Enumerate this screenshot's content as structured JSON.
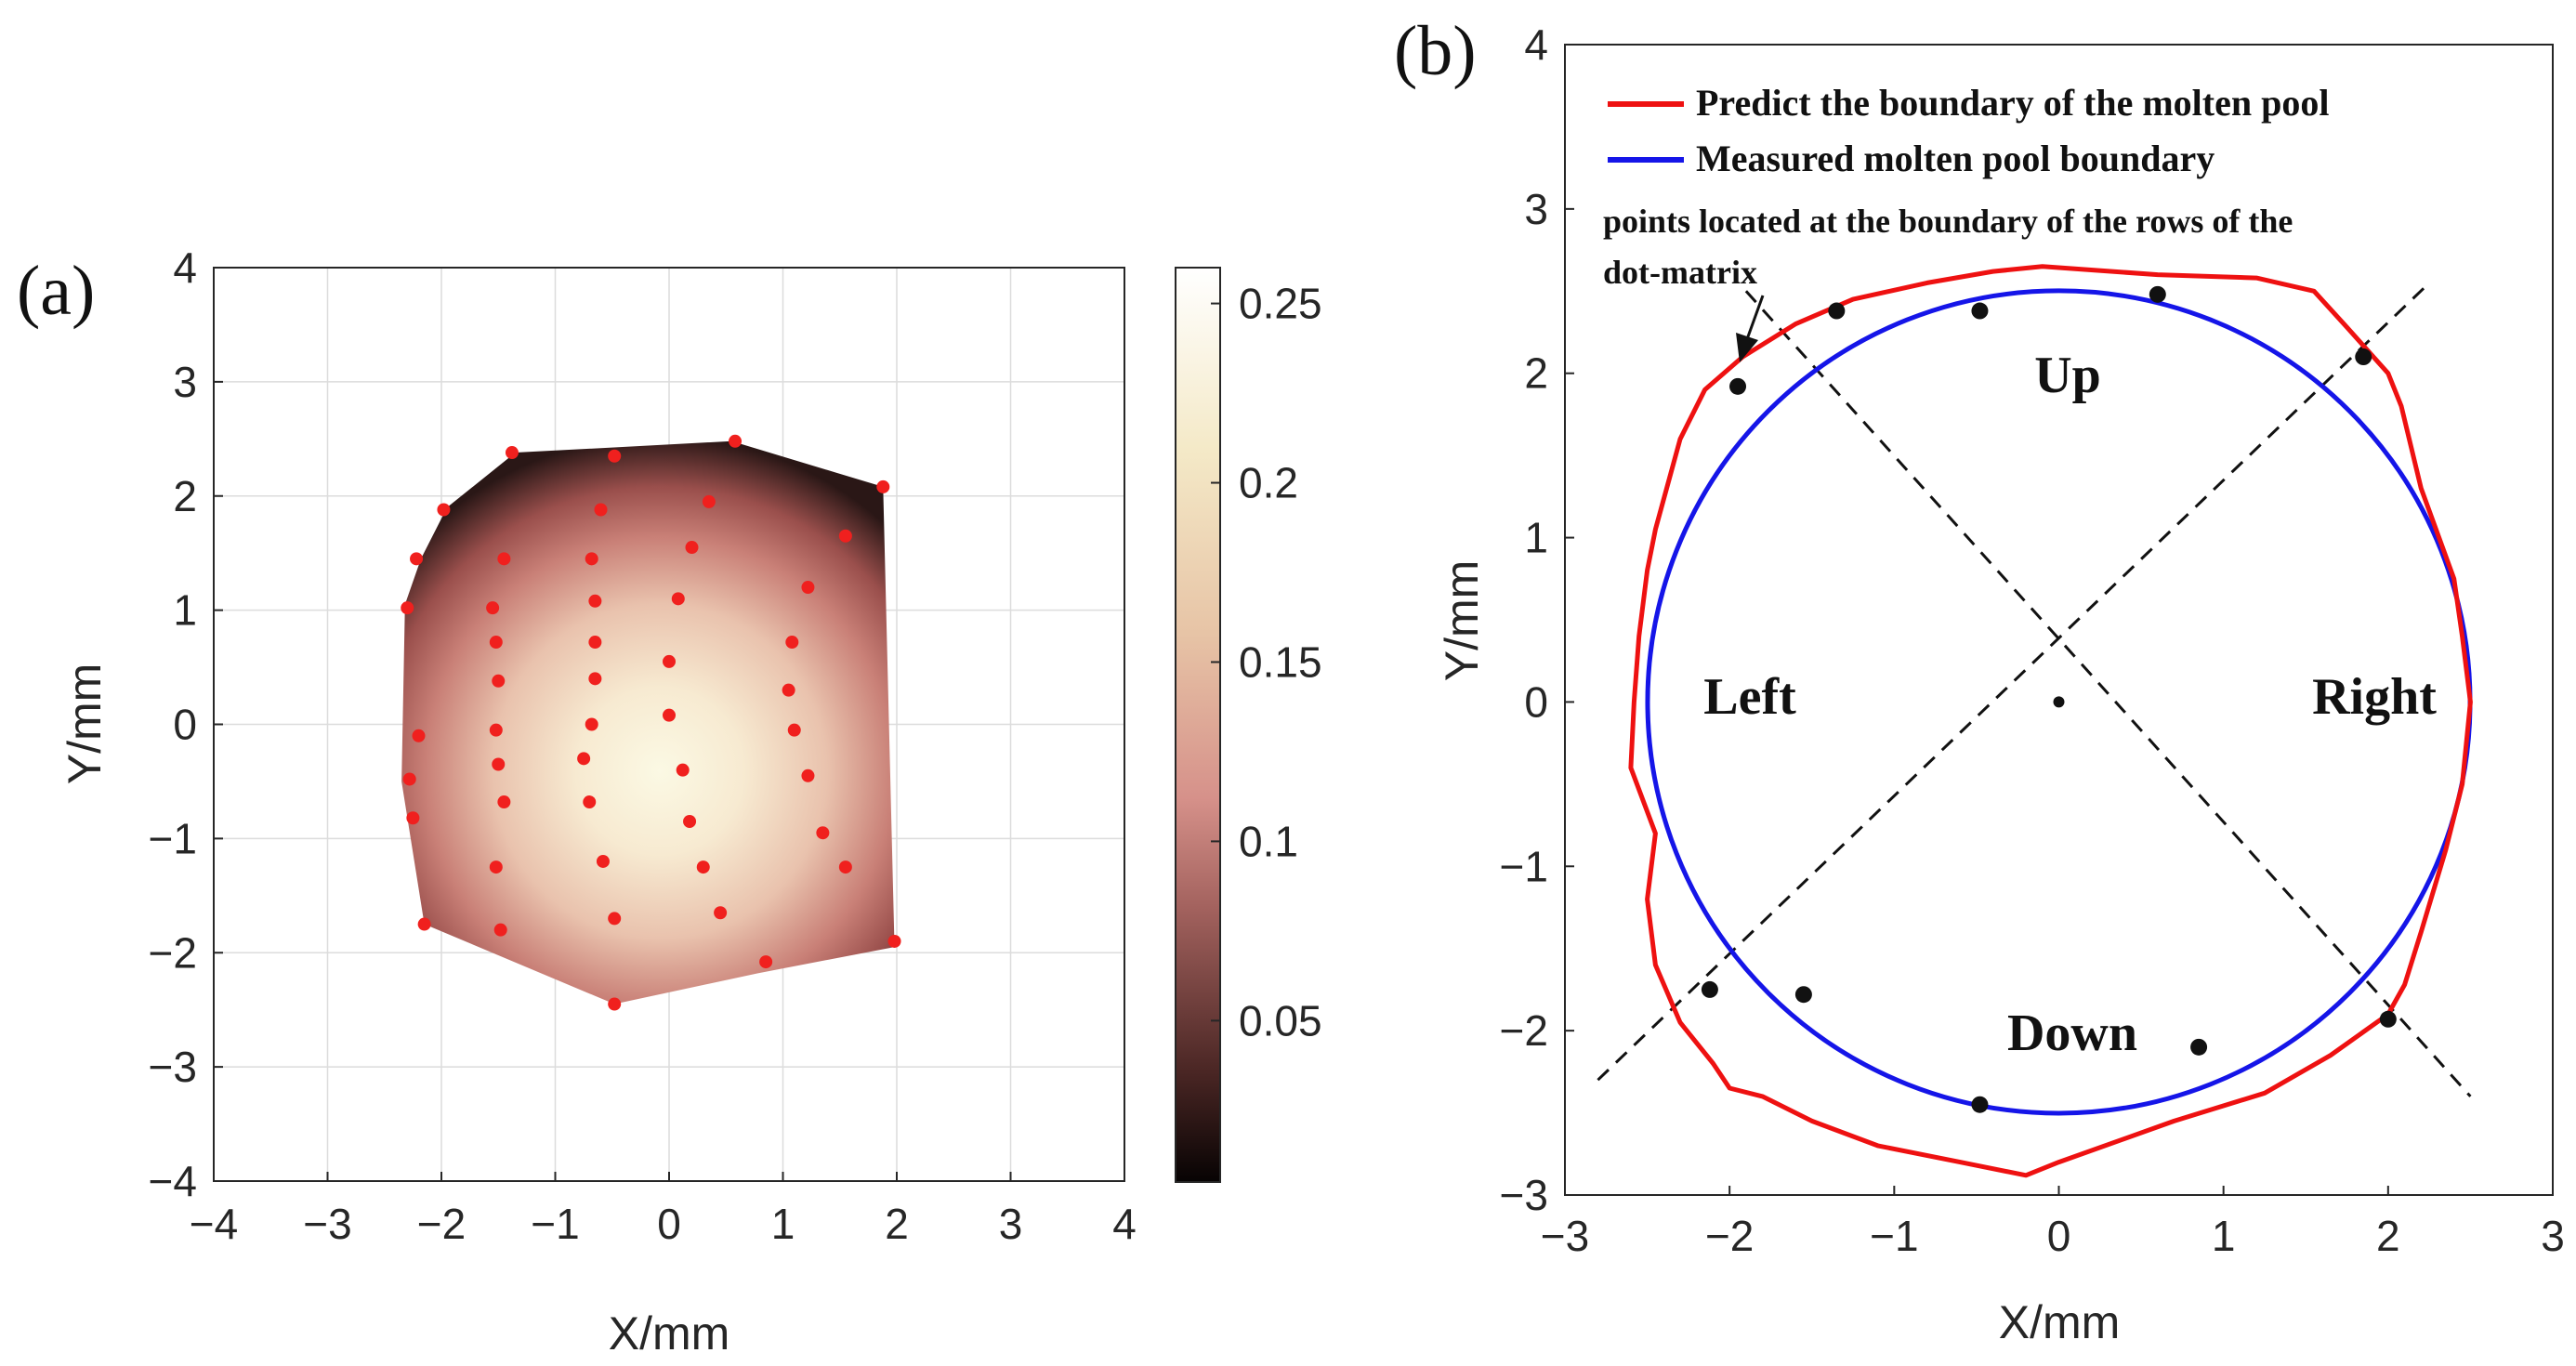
{
  "chart_data": [
    {
      "panel_label": "(a)",
      "type": "surface-heatmap",
      "xlabel": "X/mm",
      "ylabel": "Y/mm",
      "xlim": [
        -4,
        4
      ],
      "ylim": [
        -4,
        4
      ],
      "xticks": [
        "−4",
        "−3",
        "−2",
        "−1",
        "0",
        "1",
        "2",
        "3",
        "4"
      ],
      "yticks": [
        "4",
        "3",
        "2",
        "1",
        "0",
        "−1",
        "−2",
        "−3",
        "−4"
      ],
      "grid": true,
      "colorbar": {
        "ticks": [
          "0.25",
          "0.2",
          "0.15",
          "0.1",
          "0.05"
        ],
        "tick_values": [
          0.25,
          0.2,
          0.15,
          0.1,
          0.05
        ],
        "range": [
          0.005,
          0.26
        ]
      },
      "boundary_hull": [
        [
          -1.35,
          2.38
        ],
        [
          0.55,
          2.48
        ],
        [
          1.88,
          2.08
        ],
        [
          1.98,
          -1.95
        ],
        [
          0.78,
          -2.18
        ],
        [
          -0.48,
          -2.45
        ],
        [
          -2.15,
          -1.75
        ],
        [
          -2.35,
          -0.5
        ],
        [
          -2.32,
          1.05
        ],
        [
          -2.18,
          1.45
        ],
        [
          -1.95,
          1.9
        ]
      ],
      "points": [
        [
          -1.38,
          2.38
        ],
        [
          -0.48,
          2.35
        ],
        [
          0.58,
          2.48
        ],
        [
          1.88,
          2.08
        ],
        [
          -1.98,
          1.88
        ],
        [
          -0.6,
          1.88
        ],
        [
          0.35,
          1.95
        ],
        [
          1.55,
          1.65
        ],
        [
          -2.22,
          1.45
        ],
        [
          -1.45,
          1.45
        ],
        [
          -0.68,
          1.45
        ],
        [
          0.2,
          1.55
        ],
        [
          1.22,
          1.2
        ],
        [
          -2.3,
          1.02
        ],
        [
          -1.55,
          1.02
        ],
        [
          -0.65,
          1.08
        ],
        [
          0.08,
          1.1
        ],
        [
          1.08,
          0.72
        ],
        [
          -1.52,
          0.72
        ],
        [
          -0.65,
          0.72
        ],
        [
          -1.5,
          0.38
        ],
        [
          -0.65,
          0.4
        ],
        [
          0.0,
          0.55
        ],
        [
          1.05,
          0.3
        ],
        [
          -2.2,
          -0.1
        ],
        [
          -1.52,
          -0.05
        ],
        [
          -0.68,
          0.0
        ],
        [
          0.0,
          0.08
        ],
        [
          1.1,
          -0.05
        ],
        [
          -2.28,
          -0.48
        ],
        [
          -1.5,
          -0.35
        ],
        [
          -0.75,
          -0.3
        ],
        [
          0.12,
          -0.4
        ],
        [
          1.22,
          -0.45
        ],
        [
          -2.25,
          -0.82
        ],
        [
          -1.45,
          -0.68
        ],
        [
          -0.7,
          -0.68
        ],
        [
          0.18,
          -0.85
        ],
        [
          1.35,
          -0.95
        ],
        [
          -1.52,
          -1.25
        ],
        [
          -0.58,
          -1.2
        ],
        [
          0.3,
          -1.25
        ],
        [
          1.55,
          -1.25
        ],
        [
          -0.48,
          -1.7
        ],
        [
          0.45,
          -1.65
        ],
        [
          -2.15,
          -1.75
        ],
        [
          -1.48,
          -1.8
        ],
        [
          1.98,
          -1.9
        ],
        [
          0.85,
          -2.08
        ],
        [
          -0.48,
          -2.45
        ]
      ]
    },
    {
      "panel_label": "(b)",
      "type": "line",
      "xlabel": "X/mm",
      "ylabel": "Y/mm",
      "xlim": [
        -3,
        3
      ],
      "ylim": [
        -3,
        4
      ],
      "xticks": [
        "−3",
        "−2",
        "−1",
        "0",
        "1",
        "2",
        "3"
      ],
      "yticks": [
        "4",
        "3",
        "2",
        "1",
        "0",
        "−1",
        "−2",
        "−3"
      ],
      "legend": [
        {
          "label": "Predict the boundary of the molten pool",
          "color": "#ee1111"
        },
        {
          "label": "Measured molten pool boundary",
          "color": "#1515e8"
        }
      ],
      "annotation": {
        "text_line1": "points located at the boundary of the rows of the",
        "text_line2": "dot-matrix",
        "arrow_target": [
          -1.95,
          2.05
        ]
      },
      "regions": [
        "Up",
        "Left",
        "Right",
        "Down"
      ],
      "measured_circle": {
        "center": [
          0,
          0
        ],
        "radius": 2.5
      },
      "predicted_boundary": [
        [
          -0.1,
          2.65
        ],
        [
          0.6,
          2.6
        ],
        [
          1.2,
          2.58
        ],
        [
          1.55,
          2.5
        ],
        [
          1.75,
          2.28
        ],
        [
          2.0,
          2.0
        ],
        [
          2.08,
          1.8
        ],
        [
          2.2,
          1.3
        ],
        [
          2.4,
          0.75
        ],
        [
          2.45,
          0.4
        ],
        [
          2.5,
          0.0
        ],
        [
          2.45,
          -0.5
        ],
        [
          2.35,
          -0.9
        ],
        [
          2.2,
          -1.4
        ],
        [
          2.1,
          -1.72
        ],
        [
          2.0,
          -1.9
        ],
        [
          1.65,
          -2.15
        ],
        [
          1.25,
          -2.38
        ],
        [
          0.7,
          -2.55
        ],
        [
          0.0,
          -2.8
        ],
        [
          -0.2,
          -2.88
        ],
        [
          -0.6,
          -2.8
        ],
        [
          -1.1,
          -2.7
        ],
        [
          -1.5,
          -2.55
        ],
        [
          -1.8,
          -2.4
        ],
        [
          -2.0,
          -2.35
        ],
        [
          -2.1,
          -2.2
        ],
        [
          -2.3,
          -1.95
        ],
        [
          -2.45,
          -1.6
        ],
        [
          -2.5,
          -1.2
        ],
        [
          -2.45,
          -0.8
        ],
        [
          -2.6,
          -0.4
        ],
        [
          -2.58,
          0.0
        ],
        [
          -2.55,
          0.4
        ],
        [
          -2.5,
          0.8
        ],
        [
          -2.45,
          1.05
        ],
        [
          -2.3,
          1.6
        ],
        [
          -2.15,
          1.9
        ],
        [
          -1.92,
          2.1
        ],
        [
          -1.6,
          2.3
        ],
        [
          -1.25,
          2.45
        ],
        [
          -0.8,
          2.55
        ],
        [
          -0.4,
          2.62
        ],
        [
          -0.1,
          2.65
        ]
      ],
      "dashed_lines": [
        [
          [
            -1.9,
            2.5
          ],
          [
            2.5,
            -2.4
          ]
        ],
        [
          [
            -2.8,
            -2.3
          ],
          [
            2.25,
            2.55
          ]
        ]
      ],
      "center_marker": [
        0,
        0
      ],
      "points": [
        [
          -1.95,
          1.92
        ],
        [
          -1.35,
          2.38
        ],
        [
          -0.48,
          2.38
        ],
        [
          0.6,
          2.48
        ],
        [
          1.85,
          2.1
        ],
        [
          -2.12,
          -1.75
        ],
        [
          -1.55,
          -1.78
        ],
        [
          -0.48,
          -2.45
        ],
        [
          0.85,
          -2.1
        ],
        [
          2.0,
          -1.93
        ]
      ]
    }
  ]
}
